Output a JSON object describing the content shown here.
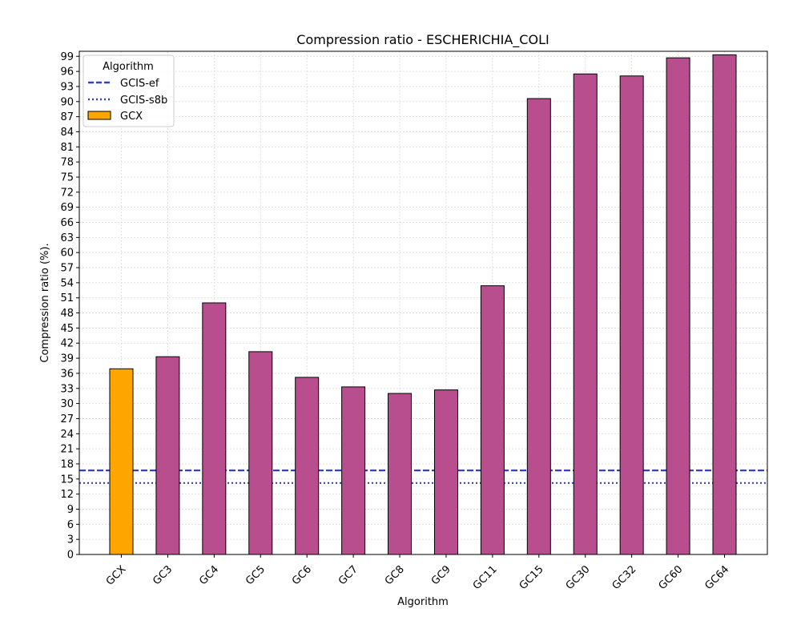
{
  "chart_data": {
    "type": "bar",
    "title": "Compression ratio -  ESCHERICHIA_COLI",
    "xlabel": "Algorithm",
    "ylabel": "Compression ratio (%).",
    "ylim": [
      0,
      100
    ],
    "y_ticks": [
      0,
      3,
      6,
      9,
      12,
      15,
      18,
      21,
      24,
      27,
      30,
      33,
      36,
      39,
      42,
      45,
      48,
      51,
      54,
      57,
      60,
      63,
      66,
      69,
      72,
      75,
      78,
      81,
      84,
      87,
      90,
      93,
      96,
      99
    ],
    "grid": true,
    "categories": [
      "GCX",
      "GC3",
      "GC4",
      "GC5",
      "GC6",
      "GC7",
      "GC8",
      "GC9",
      "GC11",
      "GC15",
      "GC30",
      "GC32",
      "GC60",
      "GC64"
    ],
    "values": [
      36.9,
      39.3,
      50.0,
      40.3,
      35.2,
      33.3,
      32.0,
      32.7,
      53.4,
      90.6,
      95.5,
      95.1,
      98.7,
      99.3
    ],
    "bar_colors": [
      "#ffa500",
      "#b94e8f",
      "#b94e8f",
      "#b94e8f",
      "#b94e8f",
      "#b94e8f",
      "#b94e8f",
      "#b94e8f",
      "#b94e8f",
      "#b94e8f",
      "#b94e8f",
      "#b94e8f",
      "#b94e8f",
      "#b94e8f"
    ],
    "reference_lines": [
      {
        "name": "GCIS-ef",
        "value": 16.7,
        "style": "dashed",
        "color": "#3344bb"
      },
      {
        "name": "GCIS-s8b",
        "value": 14.2,
        "style": "dotted",
        "color": "#3344bb"
      }
    ],
    "legend": {
      "title": "Algorithm",
      "placement": "top-left",
      "entries": [
        {
          "label": "GCIS-ef",
          "kind": "dashed-line",
          "color": "#3344bb"
        },
        {
          "label": "GCIS-s8b",
          "kind": "dotted-line",
          "color": "#3344bb"
        },
        {
          "label": "GCX",
          "kind": "patch",
          "color": "#ffa500"
        }
      ]
    }
  }
}
